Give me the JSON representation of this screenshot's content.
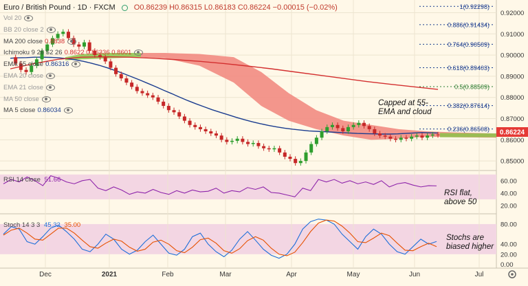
{
  "header": {
    "symbol": "Euro / British Pound",
    "interval": "1D",
    "exchange": "FXCM",
    "ohlc": "O0.86239 H0.86315 L0.86183 C0.86224 −0.00015 (−0.02%)"
  },
  "indicators": [
    {
      "label": "Vol 20",
      "value": "",
      "faded": true
    },
    {
      "label": "BB 20 close 2",
      "value": "",
      "faded": true
    },
    {
      "label": "MA 200 close",
      "value": "0.8838",
      "faded": false,
      "color": "#d32f2f"
    },
    {
      "label": "Ichimoku 9 26 52 26",
      "value": "0.8622 0.86336 0.8601",
      "faded": false,
      "color": "#d32f2f"
    },
    {
      "label": "EMA 55 close",
      "value": "0.86316",
      "faded": false,
      "color": "#1a3c8f"
    },
    {
      "label": "EMA 20 close",
      "value": "",
      "faded": true
    },
    {
      "label": "EMA 21 close",
      "value": "",
      "faded": true
    },
    {
      "label": "MA 50 close",
      "value": "",
      "faded": true
    },
    {
      "label": "MA 5 close",
      "value": "0.86034",
      "faded": false,
      "color": "#1a3c8f"
    }
  ],
  "rsi": {
    "label": "RSI 14 close",
    "value": "51.66"
  },
  "stoch": {
    "label": "Stoch 14 3 3",
    "k": "45.32",
    "d": "35.00"
  },
  "annotations": {
    "capped_line1": "Capped at 55-",
    "capped_line2": "EMA and cloud",
    "rsi_line1": "RSI flat,",
    "rsi_line2": "above 50",
    "stoch_line1": "Stochs are",
    "stoch_line2": "biased higher"
  },
  "price_tag": "0.86224",
  "fib_levels": [
    {
      "label": "1(0.92298)",
      "value": 0.92298,
      "color": "#1a3c8f"
    },
    {
      "label": "0.886(0.91434)",
      "value": 0.91434,
      "color": "#1a3c8f"
    },
    {
      "label": "0.764(0.90509)",
      "value": 0.90509,
      "color": "#1a3c8f"
    },
    {
      "label": "0.618(0.89403)",
      "value": 0.89403,
      "color": "#1a3c8f"
    },
    {
      "label": "0.5(0.88509)",
      "value": 0.88509,
      "color": "#2e7d32"
    },
    {
      "label": "0.382(0.87614)",
      "value": 0.87614,
      "color": "#1a3c8f"
    },
    {
      "label": "0.236(0.86508)",
      "value": 0.86508,
      "color": "#1a3c8f"
    }
  ],
  "chart_data": {
    "type": "candlestick",
    "title": "Euro / British Pound 1D FXCM",
    "x_ticks": [
      "Dec",
      "2021",
      "Feb",
      "Mar",
      "Apr",
      "May",
      "Jun",
      "Jul"
    ],
    "price_axis": {
      "ticks": [
        0.92,
        0.91,
        0.9,
        0.89,
        0.88,
        0.87,
        0.86,
        0.85
      ],
      "labels": [
        "0.92000",
        "0.91000",
        "0.90000",
        "0.89000",
        "0.88000",
        "0.87000",
        "0.86000",
        "0.85000"
      ],
      "ylim": [
        0.8455,
        0.926
      ]
    },
    "rsi_axis": {
      "ticks": [
        60,
        40,
        20
      ],
      "labels": [
        "60.00",
        "40.00",
        "20.00"
      ],
      "ylim": [
        10,
        72
      ],
      "band": [
        30,
        70
      ]
    },
    "stoch_axis": {
      "ticks": [
        80,
        40,
        20,
        0
      ],
      "labels": [
        "80.00",
        "40.00",
        "20.00",
        "0.00"
      ],
      "ylim": [
        -5,
        95
      ],
      "band": [
        20,
        80
      ]
    },
    "price_series": [
      0.899,
      0.896,
      0.893,
      0.892,
      0.895,
      0.898,
      0.902,
      0.905,
      0.908,
      0.91,
      0.911,
      0.908,
      0.905,
      0.904,
      0.906,
      0.902,
      0.9,
      0.899,
      0.897,
      0.894,
      0.891,
      0.889,
      0.887,
      0.885,
      0.883,
      0.882,
      0.881,
      0.88,
      0.878,
      0.876,
      0.874,
      0.873,
      0.871,
      0.869,
      0.867,
      0.866,
      0.865,
      0.864,
      0.863,
      0.862,
      0.86,
      0.859,
      0.8595,
      0.8605,
      0.859,
      0.858,
      0.8585,
      0.857,
      0.856,
      0.8555,
      0.856,
      0.854,
      0.852,
      0.851,
      0.849,
      0.85,
      0.854,
      0.858,
      0.861,
      0.864,
      0.866,
      0.867,
      0.8655,
      0.864,
      0.866,
      0.867,
      0.868,
      0.8665,
      0.865,
      0.863,
      0.862,
      0.8615,
      0.8605,
      0.86,
      0.861,
      0.8605,
      0.8615,
      0.862,
      0.861,
      0.862,
      0.8625,
      0.8622
    ],
    "ema55": [
      0.8985,
      0.8987,
      0.8988,
      0.899,
      0.899,
      0.8989,
      0.8987,
      0.8983,
      0.8978,
      0.8971,
      0.8962,
      0.8952,
      0.894,
      0.8927,
      0.8913,
      0.8898,
      0.8883,
      0.8867,
      0.8851,
      0.8834,
      0.8818,
      0.8801,
      0.8785,
      0.877,
      0.8756,
      0.8742,
      0.873,
      0.8718,
      0.8706,
      0.8695,
      0.8685,
      0.8676,
      0.8668,
      0.8661,
      0.8655,
      0.865,
      0.8646,
      0.8642,
      0.864,
      0.8638,
      0.8636,
      0.8634,
      0.8632,
      0.863,
      0.8629,
      0.8628,
      0.8627,
      0.8627,
      0.8628,
      0.863,
      0.8632,
      0.8634,
      0.8633,
      0.8632
    ],
    "ma200": [
      0.8935,
      0.896,
      0.898,
      0.899,
      0.8992,
      0.899,
      0.8985,
      0.8978,
      0.897,
      0.896,
      0.8948,
      0.8935,
      0.892,
      0.8905,
      0.889,
      0.8875,
      0.8862,
      0.885,
      0.8838
    ],
    "rsi_series": [
      55,
      62,
      58,
      66,
      60,
      52,
      68,
      64,
      58,
      55,
      60,
      62,
      48,
      44,
      50,
      45,
      38,
      42,
      40,
      46,
      41,
      38,
      44,
      40,
      45,
      42,
      43,
      48,
      40,
      44,
      42,
      49,
      46,
      50,
      41,
      40,
      37,
      34,
      48,
      44,
      62,
      58,
      62,
      56,
      60,
      55,
      58,
      54,
      60,
      50,
      55,
      57,
      53,
      50,
      52,
      51.66
    ],
    "stoch_k": [
      60,
      75,
      70,
      45,
      40,
      55,
      72,
      78,
      65,
      50,
      30,
      25,
      40,
      60,
      50,
      30,
      20,
      28,
      45,
      58,
      40,
      22,
      18,
      30,
      55,
      62,
      40,
      25,
      15,
      28,
      50,
      65,
      48,
      30,
      18,
      12,
      20,
      40,
      70,
      85,
      90,
      88,
      80,
      60,
      45,
      30,
      55,
      70,
      60,
      40,
      25,
      20,
      35,
      50,
      40,
      45.32
    ],
    "stoch_d": [
      58,
      68,
      72,
      62,
      50,
      48,
      60,
      72,
      72,
      62,
      48,
      35,
      32,
      42,
      50,
      46,
      34,
      26,
      30,
      44,
      48,
      40,
      27,
      23,
      34,
      49,
      52,
      42,
      27,
      22,
      31,
      47,
      55,
      48,
      32,
      20,
      17,
      24,
      43,
      65,
      82,
      88,
      86,
      76,
      62,
      45,
      43,
      52,
      62,
      57,
      42,
      28,
      27,
      35,
      42,
      35.0
    ]
  }
}
